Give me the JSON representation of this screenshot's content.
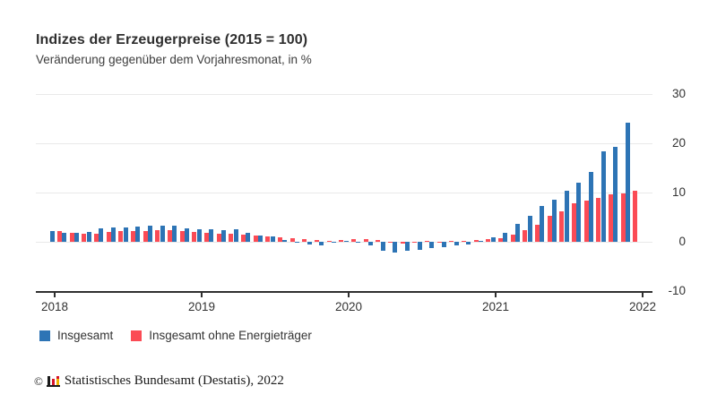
{
  "header": {
    "title": "Indizes der Erzeugerpreise (2015 = 100)",
    "subtitle": "Veränderung gegenüber dem Vorjahresmonat, in %"
  },
  "chart_data": {
    "type": "bar",
    "title": "Indizes der Erzeugerpreise (2015 = 100)",
    "subtitle": "Veränderung gegenüber dem Vorjahresmonat, in %",
    "unit": "%",
    "categories": [
      "2018-01",
      "2018-02",
      "2018-03",
      "2018-04",
      "2018-05",
      "2018-06",
      "2018-07",
      "2018-08",
      "2018-09",
      "2018-10",
      "2018-11",
      "2018-12",
      "2019-01",
      "2019-02",
      "2019-03",
      "2019-04",
      "2019-05",
      "2019-06",
      "2019-07",
      "2019-08",
      "2019-09",
      "2019-10",
      "2019-11",
      "2019-12",
      "2020-01",
      "2020-02",
      "2020-03",
      "2020-04",
      "2020-05",
      "2020-06",
      "2020-07",
      "2020-08",
      "2020-09",
      "2020-10",
      "2020-11",
      "2020-12",
      "2021-01",
      "2021-02",
      "2021-03",
      "2021-04",
      "2021-05",
      "2021-06",
      "2021-07",
      "2021-08",
      "2021-09",
      "2021-10",
      "2021-11",
      "2021-12"
    ],
    "series": [
      {
        "name": "Insgesamt",
        "color": "#2d74b5",
        "values": [
          2.1,
          1.8,
          1.9,
          2.0,
          2.7,
          3.0,
          3.0,
          3.1,
          3.2,
          3.3,
          3.3,
          2.7,
          2.6,
          2.6,
          2.4,
          2.5,
          1.9,
          1.2,
          1.1,
          0.3,
          -0.1,
          -0.6,
          -0.7,
          -0.2,
          0.2,
          -0.1,
          -0.8,
          -1.9,
          -2.2,
          -1.8,
          -1.7,
          -1.2,
          -1.0,
          -0.7,
          -0.5,
          0.2,
          0.9,
          1.9,
          3.7,
          5.2,
          7.2,
          8.5,
          10.4,
          12.0,
          14.2,
          18.4,
          19.2,
          24.2
        ]
      },
      {
        "name": "Insgesamt ohne Energieträger",
        "color": "#fb4b55",
        "values": [
          2.2,
          1.8,
          1.6,
          1.6,
          2.0,
          2.1,
          2.2,
          2.1,
          2.3,
          2.3,
          2.1,
          2.0,
          1.8,
          1.7,
          1.6,
          1.5,
          1.3,
          1.1,
          0.9,
          0.7,
          0.5,
          0.3,
          0.2,
          0.4,
          0.6,
          0.5,
          0.3,
          -0.2,
          -0.3,
          -0.2,
          0.1,
          -0.1,
          0.1,
          0.2,
          0.3,
          0.5,
          0.8,
          1.5,
          2.4,
          3.5,
          5.2,
          6.2,
          7.8,
          8.3,
          8.9,
          9.6,
          9.9,
          10.4
        ]
      }
    ],
    "xlabel": "",
    "ylabel": "",
    "y_ticks": [
      30,
      20,
      10,
      0,
      -10
    ],
    "ylim": [
      -10,
      30
    ],
    "x_tick_labels": [
      "2018",
      "2019",
      "2020",
      "2021",
      "2022"
    ],
    "grid": true,
    "legend_position": "bottom-left"
  },
  "footer": {
    "copyright_symbol": "©",
    "logo_icon": "destatis-bar-chart-icon",
    "text": "Statistisches Bundesamt (Destatis), 2022"
  }
}
